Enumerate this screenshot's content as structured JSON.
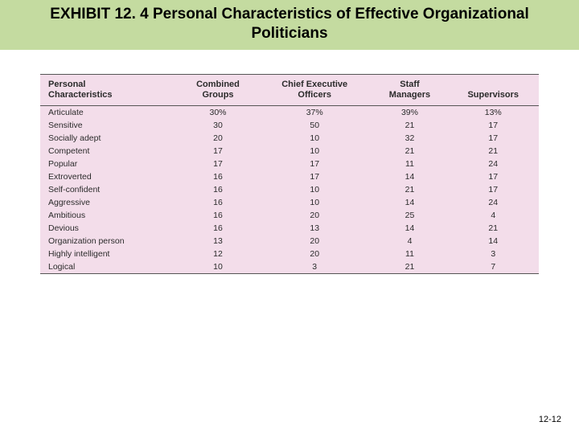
{
  "title": "EXHIBIT 12. 4 Personal Characteristics of Effective Organizational Politicians",
  "page_number": "12-12",
  "table": {
    "type": "table",
    "background_color": "#f3ddea",
    "border_color": "#555555",
    "header_fontsize": 11,
    "body_fontsize": 10.5,
    "columns": [
      {
        "label_line1": "Personal",
        "label_line2": "Characteristics",
        "align": "left"
      },
      {
        "label_line1": "Combined",
        "label_line2": "Groups",
        "align": "center"
      },
      {
        "label_line1": "Chief Executive",
        "label_line2": "Officers",
        "align": "center"
      },
      {
        "label_line1": "Staff",
        "label_line2": "Managers",
        "align": "center"
      },
      {
        "label_line1": "",
        "label_line2": "Supervisors",
        "align": "center"
      }
    ],
    "rows": [
      {
        "c0": "Articulate",
        "c1": "30%",
        "c2": "37%",
        "c3": "39%",
        "c4": "13%"
      },
      {
        "c0": "Sensitive",
        "c1": "30",
        "c2": "50",
        "c3": "21",
        "c4": "17"
      },
      {
        "c0": "Socially adept",
        "c1": "20",
        "c2": "10",
        "c3": "32",
        "c4": "17"
      },
      {
        "c0": "Competent",
        "c1": "17",
        "c2": "10",
        "c3": "21",
        "c4": "21"
      },
      {
        "c0": "Popular",
        "c1": "17",
        "c2": "17",
        "c3": "11",
        "c4": "24"
      },
      {
        "c0": "Extroverted",
        "c1": "16",
        "c2": "17",
        "c3": "14",
        "c4": "17"
      },
      {
        "c0": "Self-confident",
        "c1": "16",
        "c2": "10",
        "c3": "21",
        "c4": "17"
      },
      {
        "c0": "Aggressive",
        "c1": "16",
        "c2": "10",
        "c3": "14",
        "c4": "24"
      },
      {
        "c0": "Ambitious",
        "c1": "16",
        "c2": "20",
        "c3": "25",
        "c4": "4"
      },
      {
        "c0": "Devious",
        "c1": "16",
        "c2": "13",
        "c3": "14",
        "c4": "21"
      },
      {
        "c0": "Organization person",
        "c1": "13",
        "c2": "20",
        "c3": "4",
        "c4": "14"
      },
      {
        "c0": "Highly intelligent",
        "c1": "12",
        "c2": "20",
        "c3": "11",
        "c4": "3"
      },
      {
        "c0": "Logical",
        "c1": "10",
        "c2": "3",
        "c3": "21",
        "c4": "7"
      }
    ]
  },
  "colors": {
    "title_band": "#c4dba0",
    "title_text": "#000000",
    "page_bg": "#ffffff"
  }
}
